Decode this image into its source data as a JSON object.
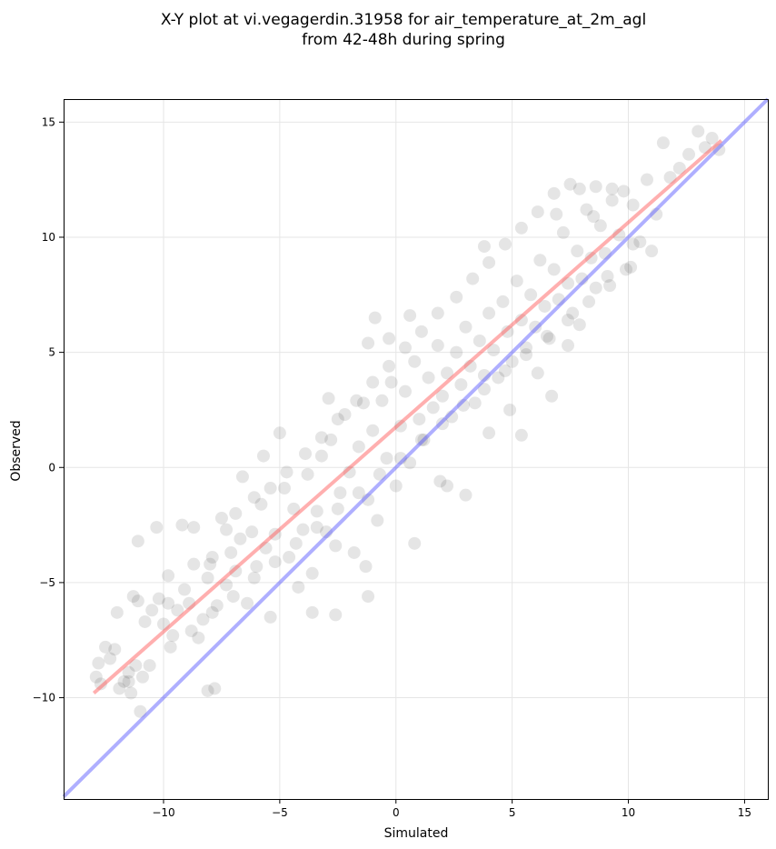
{
  "chart_data": {
    "type": "scatter",
    "title_line1": "X-Y plot at vi.vegagerdin.31958 for air_temperature_at_2m_agl",
    "title_line2": "from 42-48h during spring",
    "xlabel": "Simulated",
    "ylabel": "Observed",
    "xlim": [
      -14.3,
      16.0
    ],
    "ylim": [
      -14.4,
      16.0
    ],
    "xticks": [
      -10,
      -5,
      0,
      5,
      10,
      15
    ],
    "yticks": [
      -10,
      -5,
      0,
      5,
      10,
      15
    ],
    "xtick_labels": [
      "−10",
      "−5",
      "0",
      "5",
      "10",
      "15"
    ],
    "ytick_labels": [
      "−10",
      "−5",
      "0",
      "5",
      "10",
      "15"
    ],
    "grid": true,
    "colors": {
      "points": "#000000",
      "regression_line": "#ff4d4d",
      "identity_line": "#4d4dff",
      "grid": "#e6e6e6"
    },
    "regression_line": {
      "x": [
        -13.0,
        14.0
      ],
      "y": [
        -9.8,
        14.2
      ]
    },
    "identity_line": {
      "x": [
        -14.3,
        16.0
      ],
      "y": [
        -14.3,
        16.0
      ]
    },
    "series": [
      {
        "points": [
          [
            -12.9,
            -9.1
          ],
          [
            -12.8,
            -8.5
          ],
          [
            -12.7,
            -9.4
          ],
          [
            -12.5,
            -7.8
          ],
          [
            -12.3,
            -8.3
          ],
          [
            -12.1,
            -7.9
          ],
          [
            -11.9,
            -9.6
          ],
          [
            -11.7,
            -9.3
          ],
          [
            -11.5,
            -8.9
          ],
          [
            -11.4,
            -9.8
          ],
          [
            -11.2,
            -8.6
          ],
          [
            -11.0,
            -10.6
          ],
          [
            -10.9,
            -9.1
          ],
          [
            -11.1,
            -5.8
          ],
          [
            -10.8,
            -6.7
          ],
          [
            -11.1,
            -3.2
          ],
          [
            -10.5,
            -6.2
          ],
          [
            -10.2,
            -5.7
          ],
          [
            -10.0,
            -6.8
          ],
          [
            -9.8,
            -5.9
          ],
          [
            -9.6,
            -7.3
          ],
          [
            -9.4,
            -6.2
          ],
          [
            -10.3,
            -2.6
          ],
          [
            -9.2,
            -2.5
          ],
          [
            -8.9,
            -5.9
          ],
          [
            -8.7,
            -2.6
          ],
          [
            -8.5,
            -7.4
          ],
          [
            -8.3,
            -6.6
          ],
          [
            -8.1,
            -4.8
          ],
          [
            -7.9,
            -3.9
          ],
          [
            -7.7,
            -6.0
          ],
          [
            -7.5,
            -2.2
          ],
          [
            -7.3,
            -5.1
          ],
          [
            -7.1,
            -3.7
          ],
          [
            -6.9,
            -4.5
          ],
          [
            -6.7,
            -3.1
          ],
          [
            -6.6,
            -0.4
          ],
          [
            -6.4,
            -5.9
          ],
          [
            -6.2,
            -2.8
          ],
          [
            -6.0,
            -4.3
          ],
          [
            -5.8,
            -1.6
          ],
          [
            -5.6,
            -3.5
          ],
          [
            -5.4,
            -6.5
          ],
          [
            -5.2,
            -2.9
          ],
          [
            -5.0,
            1.5
          ],
          [
            -4.8,
            -0.9
          ],
          [
            -4.6,
            -3.9
          ],
          [
            -4.4,
            -1.8
          ],
          [
            -4.2,
            -5.2
          ],
          [
            -4.0,
            -2.7
          ],
          [
            -3.8,
            -0.3
          ],
          [
            -3.6,
            -4.6
          ],
          [
            -3.4,
            -1.9
          ],
          [
            -3.2,
            0.5
          ],
          [
            -3.0,
            -2.8
          ],
          [
            -2.8,
            1.2
          ],
          [
            -2.6,
            -3.4
          ],
          [
            -2.4,
            -1.1
          ],
          [
            -2.2,
            2.3
          ],
          [
            -2.0,
            -0.2
          ],
          [
            -1.8,
            -3.7
          ],
          [
            -1.6,
            0.9
          ],
          [
            -1.4,
            2.8
          ],
          [
            -1.2,
            -1.4
          ],
          [
            -1.0,
            1.6
          ],
          [
            -0.8,
            -2.3
          ],
          [
            -0.6,
            2.9
          ],
          [
            -0.4,
            0.4
          ],
          [
            -0.2,
            3.7
          ],
          [
            0.0,
            -0.8
          ],
          [
            0.2,
            1.8
          ],
          [
            0.4,
            3.3
          ],
          [
            0.6,
            0.2
          ],
          [
            0.8,
            4.6
          ],
          [
            1.0,
            2.1
          ],
          [
            1.2,
            1.2
          ],
          [
            1.4,
            3.9
          ],
          [
            1.6,
            2.6
          ],
          [
            1.8,
            5.3
          ],
          [
            2.0,
            3.1
          ],
          [
            2.2,
            4.1
          ],
          [
            2.4,
            2.2
          ],
          [
            2.6,
            5.0
          ],
          [
            2.8,
            3.6
          ],
          [
            3.0,
            6.1
          ],
          [
            3.2,
            4.4
          ],
          [
            3.4,
            2.8
          ],
          [
            3.6,
            5.5
          ],
          [
            3.8,
            4.0
          ],
          [
            4.0,
            6.7
          ],
          [
            4.2,
            5.1
          ],
          [
            4.4,
            3.9
          ],
          [
            4.6,
            7.2
          ],
          [
            4.8,
            5.9
          ],
          [
            5.0,
            4.6
          ],
          [
            5.2,
            8.1
          ],
          [
            5.4,
            6.4
          ],
          [
            5.6,
            5.2
          ],
          [
            5.8,
            7.5
          ],
          [
            6.0,
            6.1
          ],
          [
            6.2,
            9.0
          ],
          [
            6.4,
            7.0
          ],
          [
            6.6,
            5.6
          ],
          [
            6.8,
            8.6
          ],
          [
            7.0,
            7.3
          ],
          [
            7.2,
            10.2
          ],
          [
            7.4,
            8.0
          ],
          [
            7.6,
            6.7
          ],
          [
            7.8,
            9.4
          ],
          [
            8.0,
            8.2
          ],
          [
            8.2,
            11.2
          ],
          [
            8.4,
            9.1
          ],
          [
            8.6,
            7.8
          ],
          [
            8.8,
            10.5
          ],
          [
            9.0,
            9.3
          ],
          [
            9.3,
            12.1
          ],
          [
            9.6,
            10.1
          ],
          [
            9.9,
            8.6
          ],
          [
            10.2,
            11.4
          ],
          [
            10.5,
            9.8
          ],
          [
            10.8,
            12.5
          ],
          [
            11.2,
            11.0
          ],
          [
            11.5,
            14.1
          ],
          [
            11.8,
            12.6
          ],
          [
            12.2,
            13.0
          ],
          [
            12.6,
            13.6
          ],
          [
            13.0,
            14.6
          ],
          [
            13.3,
            13.9
          ],
          [
            13.6,
            14.3
          ],
          [
            13.9,
            13.8
          ],
          [
            -0.9,
            6.5
          ],
          [
            -1.2,
            5.4
          ],
          [
            -0.3,
            5.6
          ],
          [
            0.8,
            -3.3
          ],
          [
            -1.3,
            -4.3
          ],
          [
            -1.2,
            -5.6
          ],
          [
            -8.1,
            -9.7
          ],
          [
            -7.8,
            -9.6
          ],
          [
            5.4,
            1.4
          ],
          [
            3.0,
            -1.2
          ],
          [
            2.2,
            -0.8
          ],
          [
            -2.6,
            -6.4
          ],
          [
            -3.6,
            -6.3
          ],
          [
            -5.7,
            0.5
          ],
          [
            -2.9,
            3.0
          ],
          [
            0.6,
            6.6
          ],
          [
            3.8,
            9.6
          ],
          [
            1.9,
            -0.6
          ],
          [
            4.0,
            1.5
          ],
          [
            4.9,
            2.5
          ],
          [
            6.7,
            3.1
          ],
          [
            7.4,
            5.3
          ],
          [
            6.1,
            4.1
          ],
          [
            7.9,
            6.2
          ],
          [
            9.1,
            8.3
          ],
          [
            10.2,
            9.7
          ],
          [
            8.5,
            10.9
          ],
          [
            9.8,
            12.0
          ],
          [
            6.9,
            11.0
          ],
          [
            7.9,
            12.1
          ],
          [
            -12.0,
            -6.3
          ],
          [
            -11.3,
            -5.6
          ],
          [
            -9.8,
            -4.7
          ],
          [
            -9.1,
            -5.3
          ],
          [
            -8.7,
            -4.2
          ],
          [
            -8.0,
            -4.2
          ],
          [
            -7.3,
            -2.7
          ],
          [
            -6.9,
            -2.0
          ],
          [
            -6.1,
            -1.3
          ],
          [
            -5.4,
            -0.9
          ],
          [
            -4.7,
            -0.2
          ],
          [
            -3.9,
            0.6
          ],
          [
            -3.2,
            1.3
          ],
          [
            -2.5,
            2.1
          ],
          [
            -1.7,
            2.9
          ],
          [
            -1.0,
            3.7
          ],
          [
            -0.3,
            4.4
          ],
          [
            0.4,
            5.2
          ],
          [
            1.1,
            5.9
          ],
          [
            1.8,
            6.7
          ],
          [
            2.6,
            7.4
          ],
          [
            3.3,
            8.2
          ],
          [
            4.0,
            8.9
          ],
          [
            4.7,
            9.7
          ],
          [
            5.4,
            10.4
          ],
          [
            6.1,
            11.1
          ],
          [
            6.8,
            11.9
          ],
          [
            7.5,
            12.3
          ],
          [
            8.6,
            12.2
          ],
          [
            9.3,
            11.6
          ],
          [
            -11.5,
            -9.3
          ],
          [
            -10.6,
            -8.6
          ],
          [
            -9.7,
            -7.8
          ],
          [
            -8.8,
            -7.1
          ],
          [
            -7.9,
            -6.3
          ],
          [
            -7.0,
            -5.6
          ],
          [
            -6.1,
            -4.8
          ],
          [
            -5.2,
            -4.1
          ],
          [
            -4.3,
            -3.3
          ],
          [
            -3.4,
            -2.6
          ],
          [
            -2.5,
            -1.8
          ],
          [
            -1.6,
            -1.1
          ],
          [
            -0.7,
            -0.3
          ],
          [
            0.2,
            0.4
          ],
          [
            1.1,
            1.2
          ],
          [
            2.0,
            1.9
          ],
          [
            2.9,
            2.7
          ],
          [
            3.8,
            3.4
          ],
          [
            4.7,
            4.2
          ],
          [
            5.6,
            4.9
          ],
          [
            6.5,
            5.7
          ],
          [
            7.4,
            6.4
          ],
          [
            8.3,
            7.2
          ],
          [
            9.2,
            7.9
          ],
          [
            10.1,
            8.7
          ],
          [
            11.0,
            9.4
          ]
        ]
      }
    ]
  }
}
